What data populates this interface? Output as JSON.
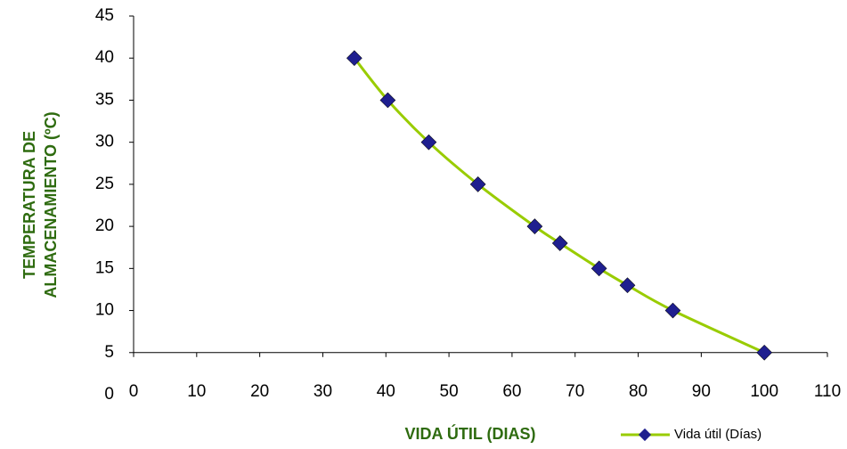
{
  "chart_data": {
    "type": "line",
    "x_label": "VIDA ÚTIL (DIAS)",
    "y_label": [
      "TEMPERATURA DE",
      "ALMACENAMIENTO (ºC)"
    ],
    "series": [
      {
        "name": "Vida útil (Días)",
        "color": "#99cc00",
        "marker_color": "#1f1f8f",
        "x": [
          35,
          40.3,
          46.8,
          54.6,
          63.6,
          67.6,
          73.8,
          78.3,
          85.5,
          100
        ],
        "values": [
          40,
          35,
          30,
          25,
          20,
          18,
          15,
          13,
          10,
          5
        ]
      }
    ],
    "xlim": [
      0,
      110
    ],
    "xticks": [
      0,
      10,
      20,
      30,
      40,
      50,
      60,
      70,
      80,
      90,
      100,
      110
    ],
    "ylim": [
      0,
      45
    ],
    "yticks": [
      0,
      5,
      10,
      15,
      20,
      25,
      30,
      35,
      40,
      45
    ],
    "x_axis_at": 5,
    "legend": "bottom-right"
  }
}
